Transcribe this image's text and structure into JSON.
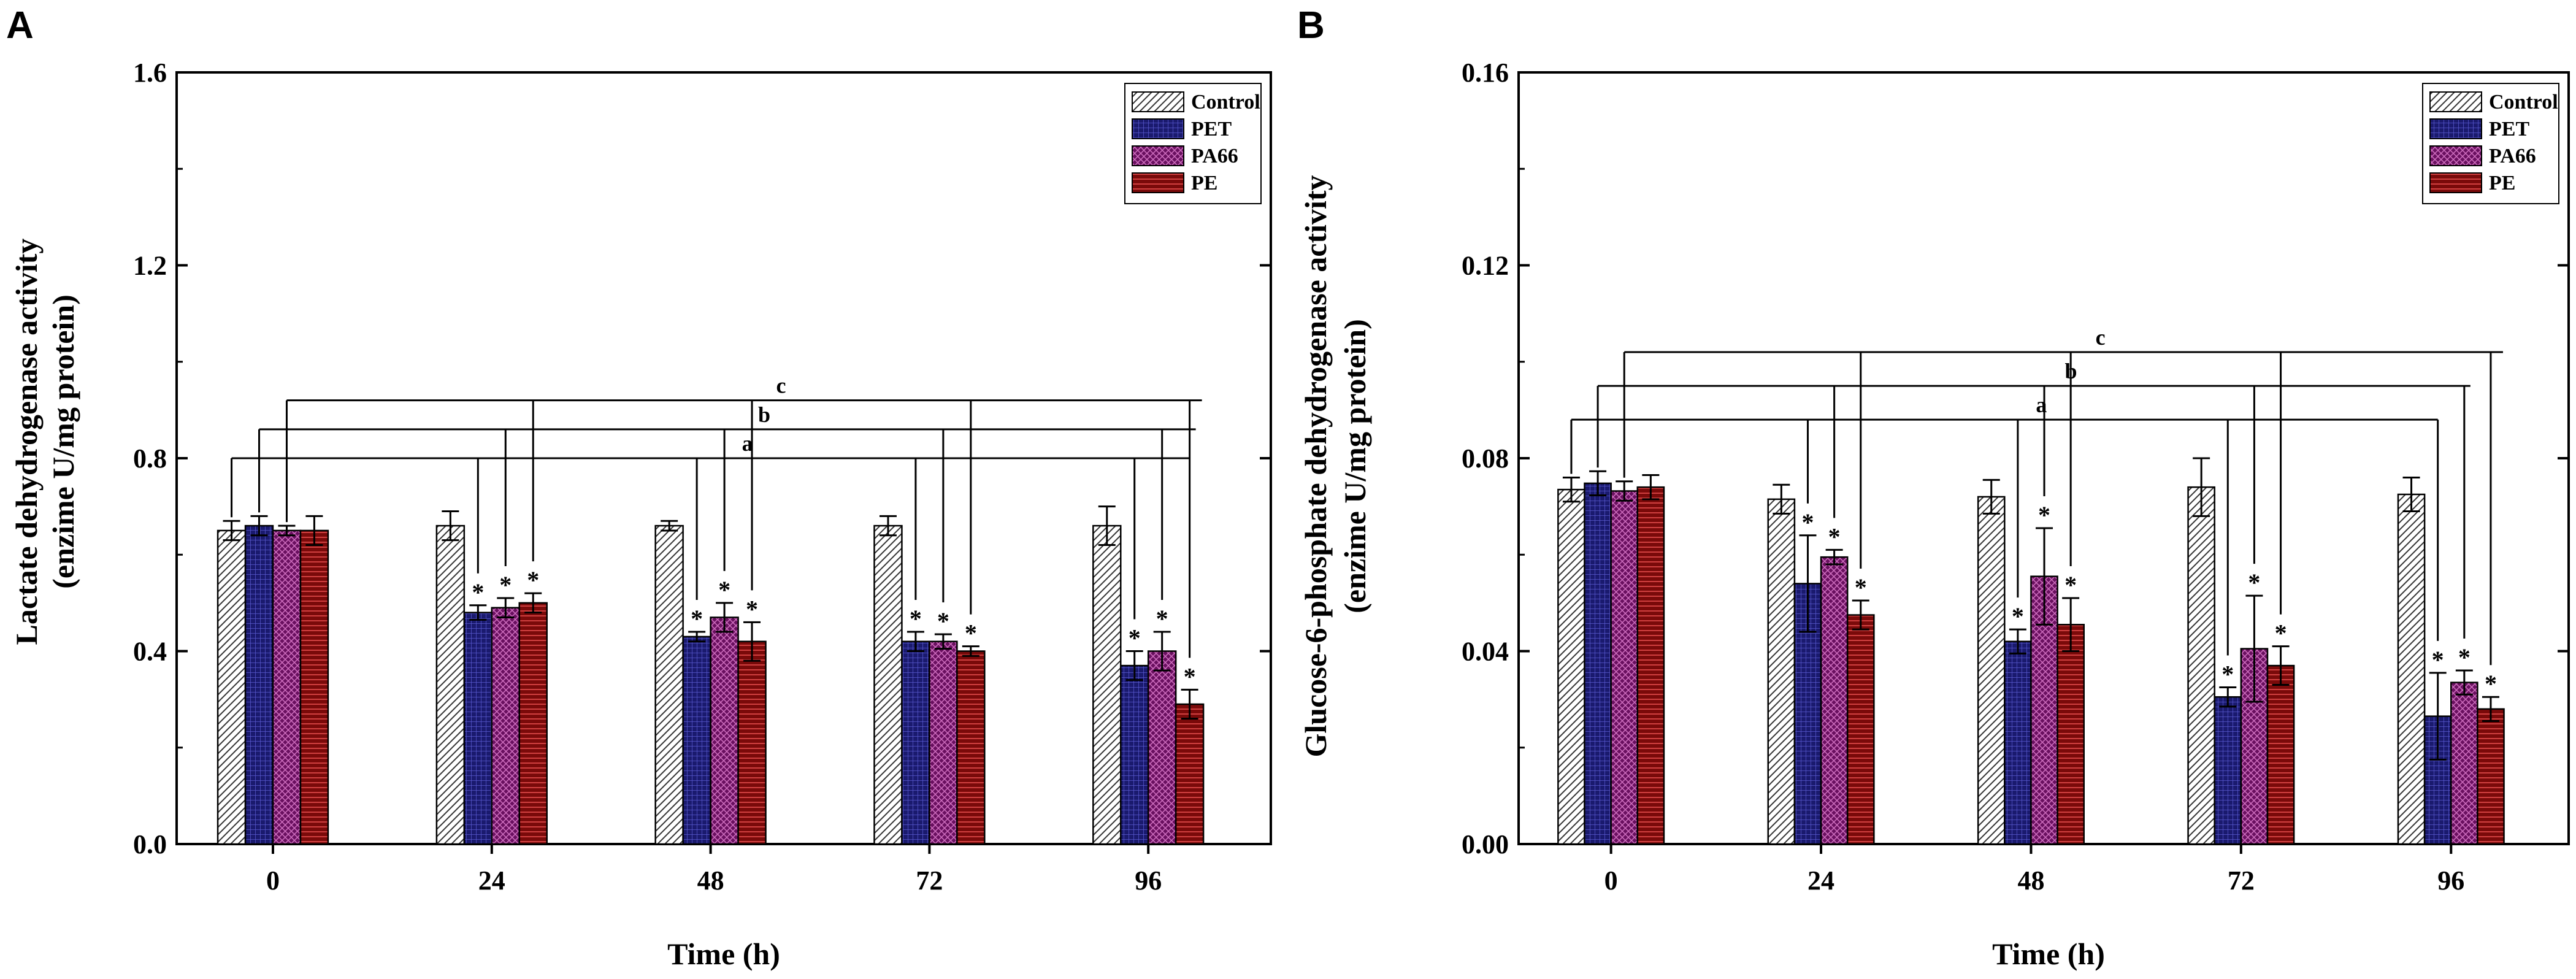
{
  "legend": [
    {
      "name": "Control",
      "pattern": "diag",
      "fill": "#ffffff",
      "stroke": "#333333"
    },
    {
      "name": "PET",
      "pattern": "grid",
      "fill": "#1a1a6e",
      "stroke": "#5a5ad0"
    },
    {
      "name": "PA66",
      "pattern": "cross",
      "fill": "#6a1060",
      "stroke": "#d070c0"
    },
    {
      "name": "PE",
      "pattern": "hline",
      "fill": "#7a0a0a",
      "stroke": "#d04040"
    }
  ],
  "chart_data": [
    {
      "panel": "A",
      "type": "bar",
      "xlabel": "Time (h)",
      "ylabel_line1": "Lactate dehydrogenase activity",
      "ylabel_line2": "(enzime U/mg protein)",
      "categories": [
        "0",
        "24",
        "48",
        "72",
        "96"
      ],
      "ylim": [
        0,
        1.6
      ],
      "yticks": [
        "0.0",
        "0.4",
        "0.8",
        "1.2",
        "1.6"
      ],
      "series": [
        {
          "name": "Control",
          "values": [
            0.65,
            0.66,
            0.66,
            0.66,
            0.66
          ],
          "errors": [
            0.02,
            0.03,
            0.01,
            0.02,
            0.04
          ],
          "sig": [
            "",
            "",
            "",
            "",
            ""
          ]
        },
        {
          "name": "PET",
          "values": [
            0.66,
            0.48,
            0.43,
            0.42,
            0.37
          ],
          "errors": [
            0.02,
            0.015,
            0.01,
            0.02,
            0.03
          ],
          "sig": [
            "",
            "*",
            "*",
            "*",
            "*"
          ]
        },
        {
          "name": "PA66",
          "values": [
            0.65,
            0.49,
            0.47,
            0.42,
            0.4
          ],
          "errors": [
            0.01,
            0.02,
            0.03,
            0.015,
            0.04
          ],
          "sig": [
            "",
            "*",
            "*",
            "*",
            "*"
          ]
        },
        {
          "name": "PE",
          "values": [
            0.65,
            0.5,
            0.42,
            0.4,
            0.29
          ],
          "errors": [
            0.03,
            0.02,
            0.04,
            0.01,
            0.03
          ],
          "sig": [
            "",
            "*",
            "*",
            "*",
            "*"
          ]
        }
      ],
      "brackets": [
        {
          "label": "a",
          "level": 0.8,
          "from_series": 0,
          "to_series": 3
        },
        {
          "label": "b",
          "level": 0.86,
          "from_series": 1,
          "to_series": 3
        },
        {
          "label": "c",
          "level": 0.92,
          "from_series": 2,
          "to_series": 3
        }
      ]
    },
    {
      "panel": "B",
      "type": "bar",
      "xlabel": "Time (h)",
      "ylabel_line1": "Glucose-6-phosphate dehydrogenase activity",
      "ylabel_line2": "(enzime U/mg protein)",
      "categories": [
        "0",
        "24",
        "48",
        "72",
        "96"
      ],
      "ylim": [
        0,
        0.16
      ],
      "yticks": [
        "0.00",
        "0.04",
        "0.08",
        "0.12",
        "0.16"
      ],
      "series": [
        {
          "name": "Control",
          "values": [
            0.0735,
            0.0715,
            0.072,
            0.074,
            0.0725
          ],
          "errors": [
            0.0025,
            0.003,
            0.0035,
            0.006,
            0.0035
          ],
          "sig": [
            "",
            "",
            "",
            "",
            ""
          ]
        },
        {
          "name": "PET",
          "values": [
            0.0748,
            0.054,
            0.042,
            0.0305,
            0.0265
          ],
          "errors": [
            0.0025,
            0.01,
            0.0025,
            0.002,
            0.009
          ],
          "sig": [
            "",
            "*",
            "*",
            "*",
            "*"
          ]
        },
        {
          "name": "PA66",
          "values": [
            0.0732,
            0.0595,
            0.0555,
            0.0405,
            0.0335
          ],
          "errors": [
            0.002,
            0.0015,
            0.01,
            0.011,
            0.0025
          ],
          "sig": [
            "",
            "*",
            "*",
            "*",
            "*"
          ]
        },
        {
          "name": "PE",
          "values": [
            0.074,
            0.0475,
            0.0455,
            0.037,
            0.028
          ],
          "errors": [
            0.0025,
            0.003,
            0.0055,
            0.004,
            0.0025
          ],
          "sig": [
            "",
            "*",
            "*",
            "*",
            "*"
          ]
        }
      ],
      "brackets": [
        {
          "label": "a",
          "level": 0.088,
          "from_series": 0,
          "to_series": 1
        },
        {
          "label": "b",
          "level": 0.095,
          "from_series": 1,
          "to_series": 2
        },
        {
          "label": "c",
          "level": 0.102,
          "from_series": 2,
          "to_series": 3
        }
      ]
    }
  ]
}
